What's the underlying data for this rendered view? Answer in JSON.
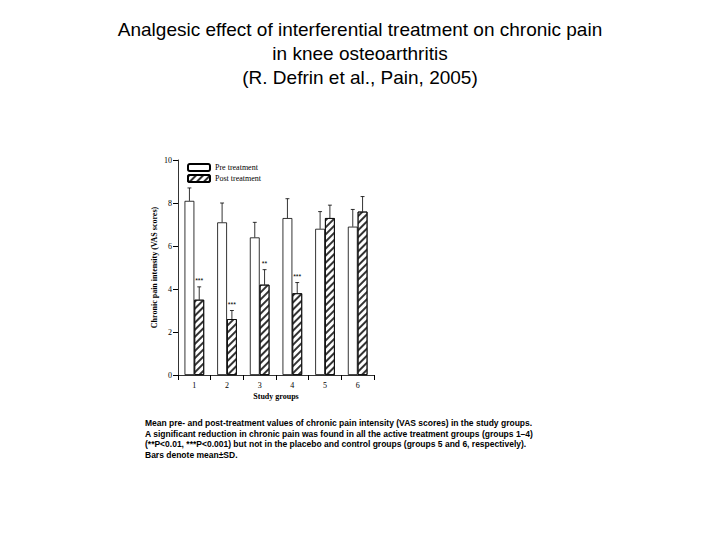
{
  "chart_data": {
    "type": "bar",
    "title": "Analgesic effect of interferential treatment on chronic pain\nin knee osteoarthritis\n(R. Defrin et al., Pain, 2005)",
    "caption": "Mean pre- and post-treatment values of chronic pain intensity (VAS scores) in the study groups.\nA significant reduction in chronic pain was found in all the active treatment groups (groups 1–4)\n(**P<0.01, ***P<0.001) but not in the placebo and control groups (groups 5 and 6, respectively).\nBars denote mean±SD.",
    "x_label": "Study groups",
    "y_label": "Chronic pain intensity (VAS scores)",
    "categories": [
      "1",
      "2",
      "3",
      "4",
      "5",
      "6"
    ],
    "ylim": [
      0,
      10
    ],
    "yticks": [
      0,
      2,
      4,
      6,
      8,
      10
    ],
    "grid": false,
    "legend": "upper left",
    "series": [
      {
        "name": "Pre treatment",
        "color": "#ffffff",
        "values": [
          8.1,
          7.1,
          6.4,
          7.3,
          6.8,
          6.9
        ],
        "errors": [
          0.6,
          0.9,
          0.7,
          0.9,
          0.8,
          0.8
        ]
      },
      {
        "name": "Post treatment",
        "color": "#ffffff",
        "values": [
          3.5,
          2.6,
          4.2,
          3.8,
          7.3,
          7.6
        ],
        "errors": [
          0.6,
          0.4,
          0.7,
          0.5,
          0.6,
          0.7
        ],
        "significance": [
          "***",
          "***",
          "**",
          "***",
          null,
          null
        ]
      }
    ]
  }
}
